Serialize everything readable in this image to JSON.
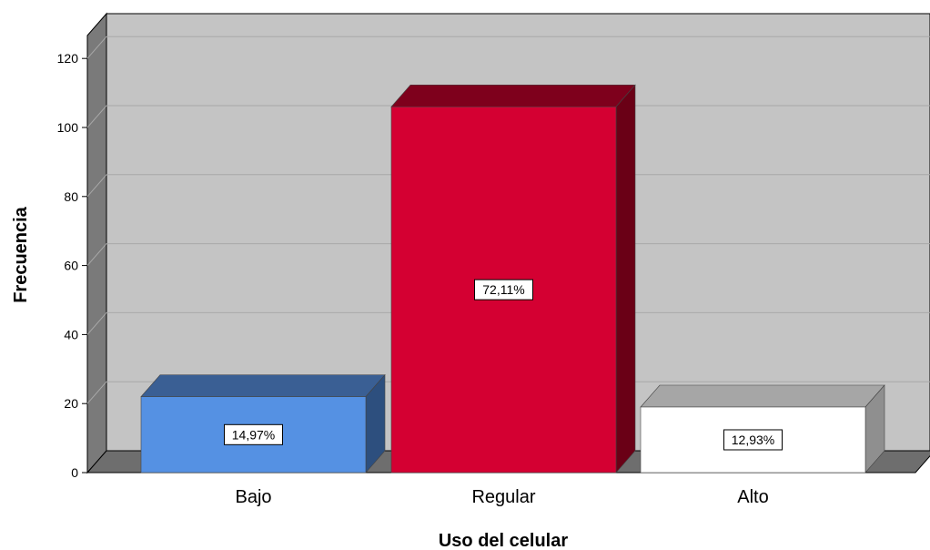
{
  "chart_data": {
    "type": "bar",
    "title": "",
    "xlabel": "Uso del celular",
    "ylabel": "Frecuencia",
    "categories": [
      "Bajo",
      "Regular",
      "Alto"
    ],
    "values": [
      22,
      106,
      19
    ],
    "data_labels": [
      "14,97%",
      "72,11%",
      "12,93%"
    ],
    "ylim": [
      0,
      120
    ],
    "yticks": [
      "0",
      "20",
      "40",
      "60",
      "80",
      "100",
      "120"
    ],
    "grid": true,
    "three_d": true,
    "colors": {
      "bars": [
        "#5591e3",
        "#d40032",
        "#ffffff"
      ],
      "bar_tops": [
        "#3a5f94",
        "#7e001c",
        "#a6a6a6"
      ],
      "bar_sides": [
        "#2d4f7e",
        "#6a0016",
        "#8f8f8f"
      ],
      "plot_back": "#c4c4c4",
      "plot_left_wall": "#7a7a7a",
      "plot_floor": "#6e6e6e",
      "grid": "#a8a8a8"
    }
  }
}
